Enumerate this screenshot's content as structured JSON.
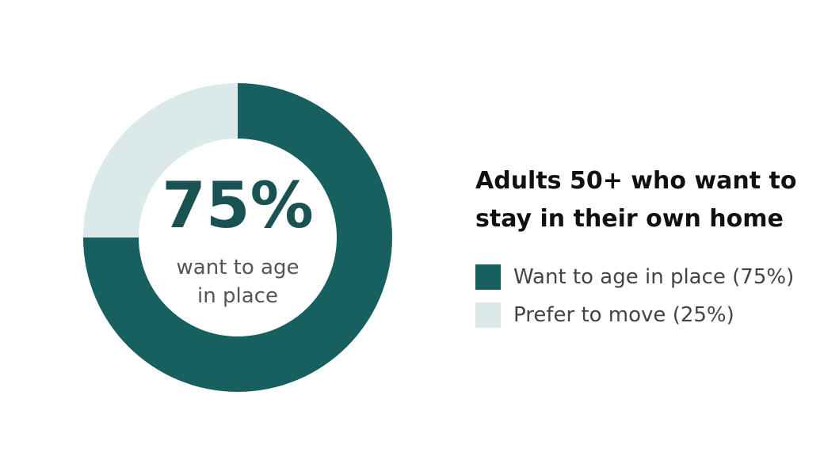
{
  "chart_data": {
    "type": "pie",
    "donut": true,
    "title": "Adults 50+ who want to stay in their own home",
    "categories": [
      "Want to age in place (75%)",
      "Prefer to move (25%)"
    ],
    "values": [
      75,
      25
    ],
    "value_labels": [
      "75%",
      null
    ],
    "center_text": "want to age in place",
    "colors": [
      "#17605f",
      "#dbe9e9"
    ]
  }
}
